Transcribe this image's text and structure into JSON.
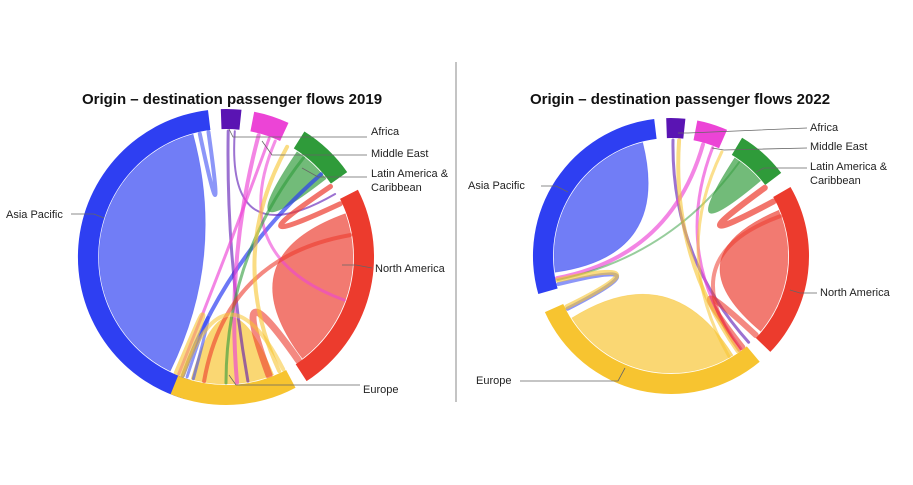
{
  "colors": {
    "Asia Pacific": "#2e3ff2",
    "Africa": "#5a14b3",
    "Middle East": "#ec44d6",
    "Latin America & Caribbean": "#2f9b3a",
    "North America": "#ec3b2d",
    "Europe": "#f7c430",
    "divider": "#8a8a8a",
    "leader": "#666666"
  },
  "panels": [
    {
      "title": "Origin – destination passenger flows 2019",
      "year": "2019",
      "labels": {
        "africa": "Africa",
        "middle_east": "Middle East",
        "latam_1": "Latin America &",
        "latam_2": "Caribbean",
        "north_america": "North America",
        "europe": "Europe",
        "asia_pacific": "Asia Pacific"
      },
      "regions": [
        {
          "name": "Asia Pacific",
          "start": 196,
          "end": 353
        },
        {
          "name": "Africa",
          "start": 358,
          "end": 366
        },
        {
          "name": "Middle East",
          "start": 371,
          "end": 385
        },
        {
          "name": "Latin America & Caribbean",
          "start": 392,
          "end": 415
        },
        {
          "name": "North America",
          "start": 423,
          "end": 507
        },
        {
          "name": "Europe",
          "start": 512,
          "end": 562
        }
      ],
      "self_flows": [
        {
          "region": "Asia Pacific",
          "a": 206,
          "b": 345
        },
        {
          "region": "Latin America & Caribbean",
          "a": 394,
          "b": 412
        },
        {
          "region": "North America",
          "a": 430,
          "b": 503
        },
        {
          "region": "Europe",
          "a": 518,
          "b": 556
        }
      ],
      "flows": [
        {
          "color_of": "Asia Pacific",
          "a": 348,
          "b": 352,
          "width": 4,
          "opacity": 0.55
        },
        {
          "color_of": "Asia Pacific",
          "a": 200,
          "b": 409,
          "width": 4,
          "opacity": 0.7
        },
        {
          "color_of": "Asia Pacific",
          "a": 198,
          "b": 555,
          "width": 3,
          "opacity": 0.55
        },
        {
          "color_of": "Africa",
          "a": 361,
          "b": 530,
          "width": 3,
          "opacity": 0.6
        },
        {
          "color_of": "Africa",
          "a": 364,
          "b": 420,
          "width": 2,
          "opacity": 0.6
        },
        {
          "color_of": "Middle East",
          "a": 375,
          "b": 535,
          "width": 4,
          "opacity": 0.65
        },
        {
          "color_of": "Middle East",
          "a": 380,
          "b": 202,
          "width": 3,
          "opacity": 0.65
        },
        {
          "color_of": "Middle East",
          "a": 383,
          "b": 470,
          "width": 3,
          "opacity": 0.6
        },
        {
          "color_of": "Latin America & Caribbean",
          "a": 398,
          "b": 540,
          "width": 3,
          "opacity": 0.6
        },
        {
          "color_of": "North America",
          "a": 425,
          "b": 416,
          "width": 5,
          "opacity": 0.7
        },
        {
          "color_of": "North America",
          "a": 505,
          "b": 520,
          "width": 7,
          "opacity": 0.6
        },
        {
          "color_of": "North America",
          "a": 440,
          "b": 550,
          "width": 4,
          "opacity": 0.6
        },
        {
          "color_of": "Europe",
          "a": 513,
          "b": 560,
          "width": 4,
          "opacity": 0.55
        },
        {
          "color_of": "Europe",
          "a": 515,
          "b": 389,
          "width": 4,
          "opacity": 0.6
        },
        {
          "color_of": "Europe",
          "a": 561,
          "b": 203,
          "width": 6,
          "opacity": 0.6
        }
      ]
    },
    {
      "title": "Origin – destination passenger flows 2022",
      "year": "2022",
      "labels": {
        "africa": "Africa",
        "middle_east": "Middle East",
        "latam_1": "Latin America &",
        "latam_2": "Caribbean",
        "north_america": "North America",
        "europe": "Europe",
        "asia_pacific": "Asia Pacific"
      },
      "regions": [
        {
          "name": "Asia Pacific",
          "start": 254,
          "end": 353
        },
        {
          "name": "Africa",
          "start": 358,
          "end": 366
        },
        {
          "name": "Middle East",
          "start": 371,
          "end": 384
        },
        {
          "name": "Latin America & Caribbean",
          "start": 391,
          "end": 413
        },
        {
          "name": "North America",
          "start": 420,
          "end": 494
        },
        {
          "name": "Europe",
          "start": 500,
          "end": 606
        }
      ],
      "self_flows": [
        {
          "region": "Asia Pacific",
          "a": 262,
          "b": 346
        },
        {
          "region": "Latin America & Caribbean",
          "a": 393,
          "b": 410
        },
        {
          "region": "North America",
          "a": 427,
          "b": 490
        },
        {
          "region": "Europe",
          "a": 508,
          "b": 598
        }
      ],
      "flows": [
        {
          "color_of": "Asia Pacific",
          "a": 256,
          "b": 603,
          "width": 4,
          "opacity": 0.55
        },
        {
          "color_of": "Africa",
          "a": 361,
          "b": 498,
          "width": 3,
          "opacity": 0.6
        },
        {
          "color_of": "Middle East",
          "a": 376,
          "b": 259,
          "width": 4,
          "opacity": 0.65
        },
        {
          "color_of": "Middle East",
          "a": 381,
          "b": 503,
          "width": 3,
          "opacity": 0.65
        },
        {
          "color_of": "Latin America & Caribbean",
          "a": 396,
          "b": 258,
          "width": 2,
          "opacity": 0.5
        },
        {
          "color_of": "North America",
          "a": 422,
          "b": 414,
          "width": 6,
          "opacity": 0.7
        },
        {
          "color_of": "North America",
          "a": 493,
          "b": 502,
          "width": 6,
          "opacity": 0.6
        },
        {
          "color_of": "North America",
          "a": 430,
          "b": 504,
          "width": 4,
          "opacity": 0.55
        },
        {
          "color_of": "Europe",
          "a": 505,
          "b": 364,
          "width": 4,
          "opacity": 0.6
        },
        {
          "color_of": "Europe",
          "a": 604,
          "b": 258,
          "width": 5,
          "opacity": 0.6
        },
        {
          "color_of": "Europe",
          "a": 510,
          "b": 386,
          "width": 3,
          "opacity": 0.55
        }
      ]
    }
  ]
}
